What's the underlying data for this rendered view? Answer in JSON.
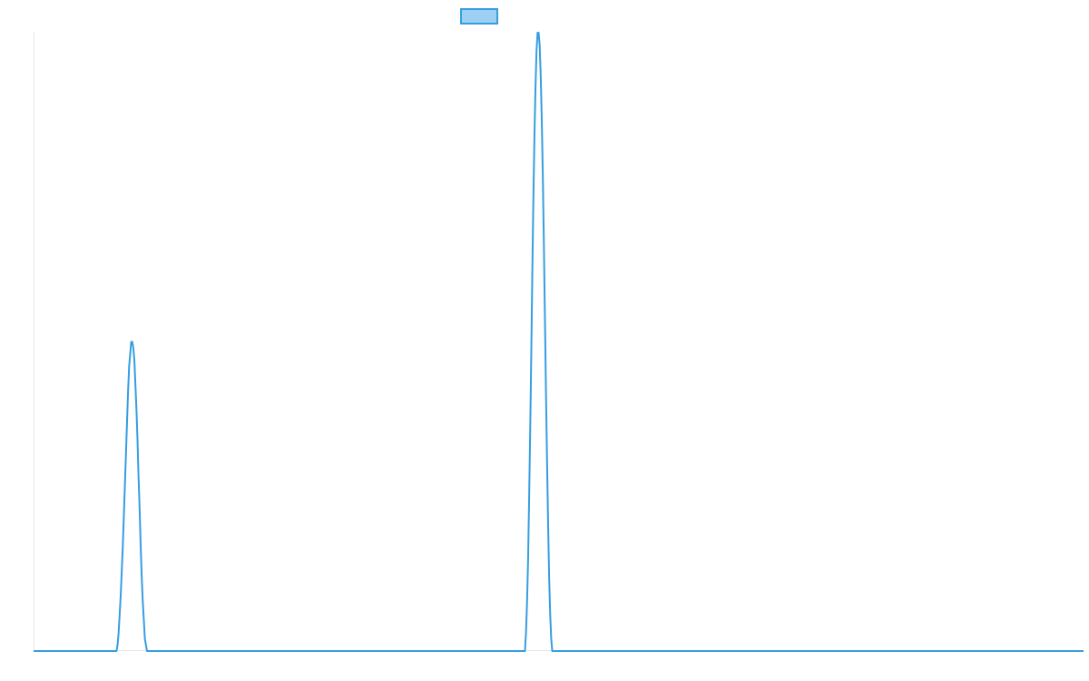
{
  "chart_data": {
    "type": "line",
    "title": "",
    "xlabel": "",
    "ylabel": "",
    "grid": false,
    "legend_position": "top-center",
    "x_range": [
      0,
      1000
    ],
    "ylim": [
      0,
      1
    ],
    "colors": {
      "line": "#369ee0",
      "legend_fill": "#9dd0f3",
      "axis": "#e6e6e6"
    },
    "series": [
      {
        "points": [
          [
            0,
            0.0
          ],
          [
            77,
            0.0
          ],
          [
            78,
            0.0
          ],
          [
            79,
            0.0
          ],
          [
            80,
            0.01
          ],
          [
            81,
            0.03
          ],
          [
            82,
            0.06
          ],
          [
            83,
            0.09
          ],
          [
            84,
            0.13
          ],
          [
            85,
            0.17
          ],
          [
            86,
            0.22
          ],
          [
            87,
            0.27
          ],
          [
            88,
            0.32
          ],
          [
            89,
            0.37
          ],
          [
            90,
            0.42
          ],
          [
            91,
            0.46
          ],
          [
            92,
            0.48
          ],
          [
            93,
            0.5
          ],
          [
            94,
            0.5
          ],
          [
            95,
            0.49
          ],
          [
            96,
            0.47
          ],
          [
            97,
            0.43
          ],
          [
            98,
            0.39
          ],
          [
            99,
            0.34
          ],
          [
            100,
            0.28
          ],
          [
            101,
            0.23
          ],
          [
            102,
            0.17
          ],
          [
            103,
            0.12
          ],
          [
            104,
            0.08
          ],
          [
            105,
            0.05
          ],
          [
            106,
            0.02
          ],
          [
            107,
            0.01
          ],
          [
            108,
            0.0
          ],
          [
            117,
            0.0
          ],
          [
            467,
            0.0
          ],
          [
            468,
            0.0
          ],
          [
            469,
            0.03
          ],
          [
            470,
            0.08
          ],
          [
            471,
            0.15
          ],
          [
            472,
            0.25
          ],
          [
            473,
            0.36
          ],
          [
            474,
            0.48
          ],
          [
            475,
            0.61
          ],
          [
            476,
            0.73
          ],
          [
            477,
            0.83
          ],
          [
            478,
            0.91
          ],
          [
            479,
            0.97
          ],
          [
            480,
            1.0
          ],
          [
            481,
            1.0
          ],
          [
            482,
            0.98
          ],
          [
            483,
            0.93
          ],
          [
            484,
            0.86
          ],
          [
            485,
            0.77
          ],
          [
            486,
            0.66
          ],
          [
            487,
            0.54
          ],
          [
            488,
            0.42
          ],
          [
            489,
            0.31
          ],
          [
            490,
            0.21
          ],
          [
            491,
            0.12
          ],
          [
            492,
            0.06
          ],
          [
            493,
            0.02
          ],
          [
            494,
            0.0
          ],
          [
            507,
            0.0
          ],
          [
            1000,
            0.0
          ]
        ]
      }
    ]
  }
}
